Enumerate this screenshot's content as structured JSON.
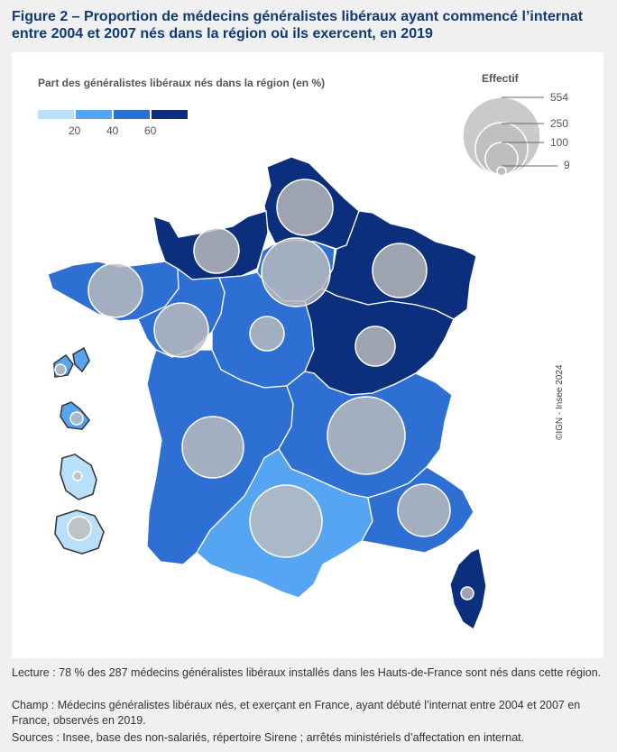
{
  "title": "Figure 2 – Proportion de médecins généralistes libéraux ayant commencé l’internat entre 2004 et 2007 nés dans la région où ils exercent, en 2019",
  "legend": {
    "title": "Part des généralistes libéraux nés dans la région (en %)",
    "ticks": [
      "20",
      "40",
      "60"
    ],
    "classes": [
      {
        "label": "< 20",
        "color": "#b8e0fa"
      },
      {
        "label": "20-40",
        "color": "#56a5f3"
      },
      {
        "label": "40-60",
        "color": "#2e6fd4"
      },
      {
        "label": "≥ 60",
        "color": "#0b2f7d"
      }
    ]
  },
  "size_legend": {
    "title": "Effectif",
    "values": [
      "554",
      "250",
      "100",
      "9"
    ]
  },
  "credit": "©IGN - Insee 2024",
  "regions": [
    {
      "name": "Hauts-de-France",
      "class": 3,
      "effectif": 287,
      "share_pct": 78
    },
    {
      "name": "Normandie",
      "class": 3
    },
    {
      "name": "Île-de-France",
      "class": 2
    },
    {
      "name": "Grand Est",
      "class": 3
    },
    {
      "name": "Bretagne",
      "class": 2
    },
    {
      "name": "Pays de la Loire",
      "class": 2
    },
    {
      "name": "Centre-Val de Loire",
      "class": 2
    },
    {
      "name": "Bourgogne-Franche-Comté",
      "class": 3
    },
    {
      "name": "Nouvelle-Aquitaine",
      "class": 2
    },
    {
      "name": "Auvergne-Rhône-Alpes",
      "class": 2
    },
    {
      "name": "Occitanie",
      "class": 1
    },
    {
      "name": "Provence-Alpes-Côte d'Azur",
      "class": 2
    },
    {
      "name": "Corse",
      "class": 3
    },
    {
      "name": "Guadeloupe",
      "class": 1
    },
    {
      "name": "Martinique",
      "class": 1
    },
    {
      "name": "Guyane",
      "class": 0
    },
    {
      "name": "La Réunion",
      "class": 0
    }
  ],
  "notes": {
    "lecture": "Lecture : 78 % des 287 médecins généralistes libéraux installés dans les Hauts-de-France sont nés dans cette région.",
    "champ": "Champ : Médecins généralistes libéraux nés, et exerçant en France, ayant débuté l’internat entre 2004 et 2007 en France, observés en 2019.",
    "sources": "Sources : Insee, base des non-salariés, répertoire Sirene ; arrêtés ministériels d’affectation en internat."
  }
}
